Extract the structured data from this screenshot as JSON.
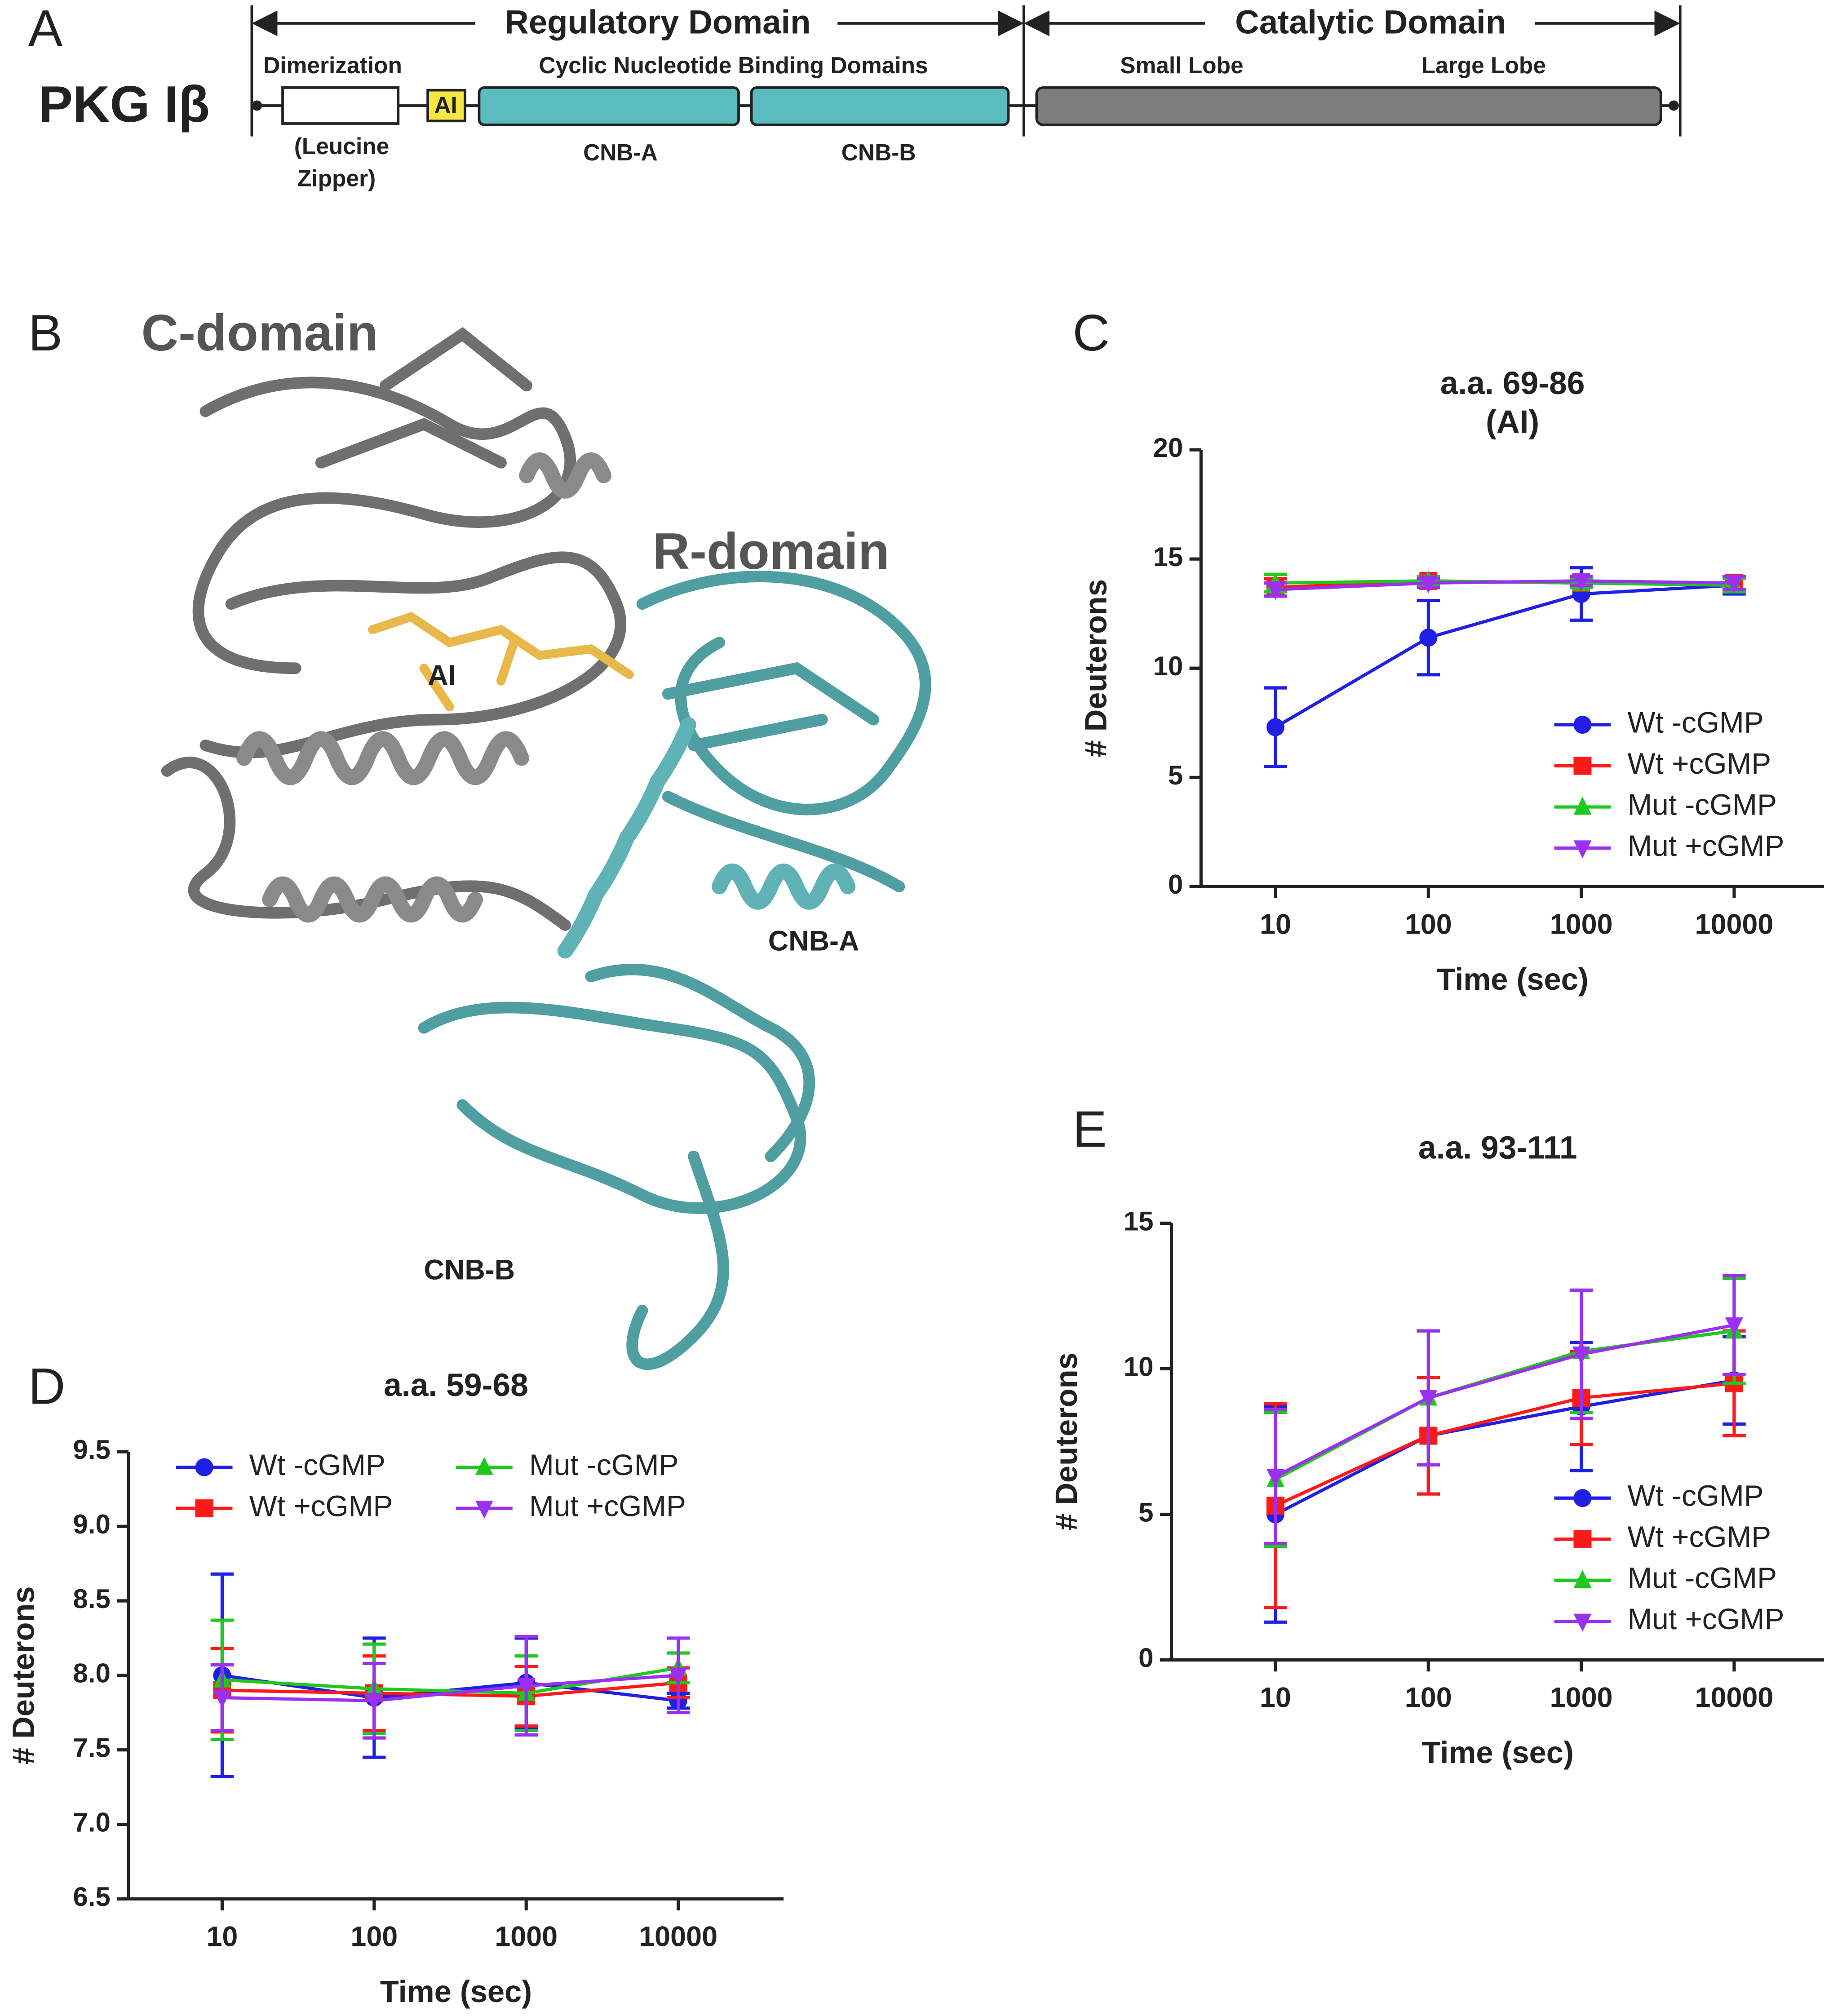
{
  "panel_labels": [
    "A",
    "B",
    "C",
    "D",
    "E"
  ],
  "domain_map": {
    "protein": "PKG Iβ",
    "regulatory": "Regulatory Domain",
    "catalytic": "Catalytic Domain",
    "dimerization": "Dimerization",
    "leucine_1": "(Leucine",
    "leucine_2": "Zipper)",
    "ai": "AI",
    "cnb": "Cyclic Nucleotide Binding Domains",
    "cnb_a": "CNB-A",
    "cnb_b": "CNB-B",
    "small_lobe": "Small Lobe",
    "large_lobe": "Large Lobe"
  },
  "structure": {
    "c_domain": "C-domain",
    "r_domain": "R-domain",
    "ai": "AI",
    "cnb_a": "CNB-A",
    "cnb_b": "CNB-B"
  },
  "chart_data": [
    {
      "type": "line",
      "title": "a.a. 69-86",
      "subtitle": "(AI)",
      "x_label": "Time (sec)",
      "y_label": "# Deuterons",
      "x": [
        10,
        100,
        1000,
        10000
      ],
      "xscale": "log",
      "xlim": [
        3.26,
        38700
      ],
      "xticks": [
        10,
        100,
        1000,
        10000
      ],
      "ylim": [
        0,
        20
      ],
      "yticks": [
        0,
        5,
        10,
        15,
        20
      ],
      "legend": "lower right",
      "series": [
        {
          "name": "Wt -cGMP",
          "color": "#1f1fe6",
          "marker": "circle",
          "values": [
            7.3,
            11.4,
            13.4,
            13.8
          ],
          "errors": [
            1.8,
            1.7,
            1.2,
            0.4
          ]
        },
        {
          "name": "Wt +cGMP",
          "color": "#ff1a1a",
          "marker": "square",
          "values": [
            13.7,
            14.0,
            13.9,
            13.9
          ],
          "errors": [
            0.4,
            0.2,
            0.2,
            0.3
          ]
        },
        {
          "name": "Mut -cGMP",
          "color": "#1ec81e",
          "marker": "triangle-up",
          "values": [
            13.9,
            14.0,
            13.9,
            13.8
          ],
          "errors": [
            0.4,
            0.2,
            0.2,
            0.3
          ]
        },
        {
          "name": "Mut +cGMP",
          "color": "#9b30f0",
          "marker": "triangle-down",
          "values": [
            13.6,
            13.9,
            14.0,
            13.9
          ],
          "errors": [
            0.3,
            0.2,
            0.2,
            0.3
          ]
        }
      ]
    },
    {
      "type": "line",
      "title": "a.a. 59-68",
      "x_label": "Time (sec)",
      "y_label": "# Deuterons",
      "x": [
        10,
        100,
        1000,
        10000
      ],
      "xscale": "log",
      "xlim": [
        2.42,
        49300
      ],
      "xticks": [
        10,
        100,
        1000,
        10000
      ],
      "ylim": [
        6.5,
        9.5
      ],
      "yticks": [
        6.5,
        {
          "value": 7,
          "label": "7.0"
        },
        7.5,
        {
          "value": 8,
          "label": "8.0"
        },
        8.5,
        {
          "value": 9,
          "label": "9.0"
        },
        9.5
      ],
      "legend": "upper left",
      "legend_columns": 2,
      "series": [
        {
          "name": "Wt -cGMP",
          "color": "#1f1fe6",
          "marker": "circle",
          "values": [
            8.0,
            7.85,
            7.95,
            7.83
          ],
          "errors": [
            0.68,
            0.4,
            0.3,
            0.05
          ]
        },
        {
          "name": "Wt +cGMP",
          "color": "#ff1a1a",
          "marker": "square",
          "values": [
            7.9,
            7.88,
            7.86,
            7.95
          ],
          "errors": [
            0.28,
            0.25,
            0.2,
            0.1
          ]
        },
        {
          "name": "Mut -cGMP",
          "color": "#1ec81e",
          "marker": "triangle-up",
          "values": [
            7.97,
            7.91,
            7.88,
            8.05
          ],
          "errors": [
            0.4,
            0.3,
            0.25,
            0.1
          ]
        },
        {
          "name": "Mut +cGMP",
          "color": "#9b30f0",
          "marker": "triangle-down",
          "values": [
            7.85,
            7.83,
            7.93,
            8.0
          ],
          "errors": [
            0.22,
            0.25,
            0.33,
            0.25
          ]
        }
      ]
    },
    {
      "type": "line",
      "title": "a.a. 93-111",
      "x_label": "Time (sec)",
      "y_label": "# Deuterons",
      "x": [
        10,
        100,
        1000,
        10000
      ],
      "xscale": "log",
      "xlim": [
        2.09,
        38700
      ],
      "xticks": [
        10,
        100,
        1000,
        10000
      ],
      "ylim": [
        0,
        15
      ],
      "yticks": [
        0,
        5,
        10,
        15
      ],
      "legend": "lower right",
      "series": [
        {
          "name": "Wt -cGMP",
          "color": "#1f1fe6",
          "marker": "circle",
          "values": [
            5.0,
            7.7,
            8.7,
            9.6
          ],
          "errors": [
            3.7,
            2.0,
            2.2,
            1.5
          ]
        },
        {
          "name": "Wt +cGMP",
          "color": "#ff1a1a",
          "marker": "square",
          "values": [
            5.3,
            7.7,
            9.0,
            9.5
          ],
          "errors": [
            3.5,
            2.0,
            1.6,
            1.8
          ]
        },
        {
          "name": "Mut -cGMP",
          "color": "#1ec81e",
          "marker": "triangle-up",
          "values": [
            6.2,
            9.0,
            10.6,
            11.3
          ],
          "errors": [
            2.3,
            2.3,
            2.1,
            1.8
          ]
        },
        {
          "name": "Mut +cGMP",
          "color": "#9b30f0",
          "marker": "triangle-down",
          "values": [
            6.3,
            9.0,
            10.5,
            11.5
          ],
          "errors": [
            2.3,
            2.3,
            2.2,
            1.7
          ]
        }
      ]
    }
  ]
}
